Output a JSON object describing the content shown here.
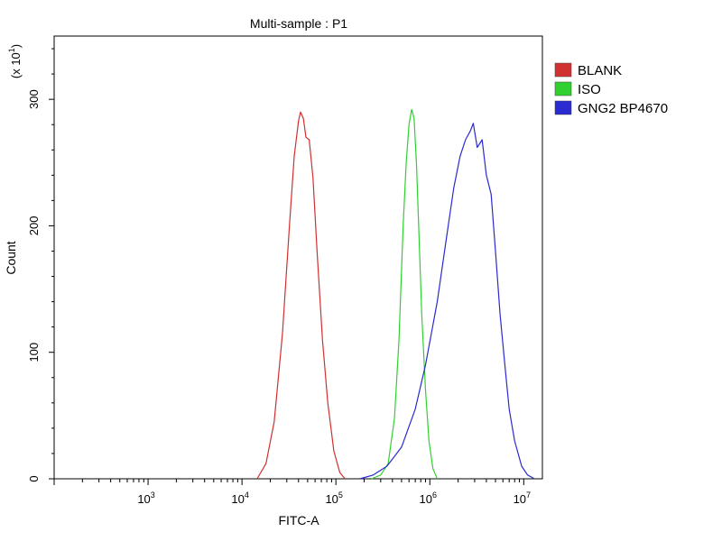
{
  "chart_data": {
    "type": "line",
    "title": "Multi-sample : P1",
    "xlabel": "FITC-A",
    "ylabel": "Count",
    "y_multiplier_label": "(x 10",
    "y_multiplier_exp": "1",
    "x_scale": "log",
    "xlim": [
      100,
      15800000
    ],
    "ylim": [
      0,
      350
    ],
    "x_ticks": [
      {
        "base": "10",
        "exp": "3",
        "value": 1000
      },
      {
        "base": "10",
        "exp": "4",
        "value": 10000
      },
      {
        "base": "10",
        "exp": "5",
        "value": 100000
      },
      {
        "base": "10",
        "exp": "6",
        "value": 1000000
      },
      {
        "base": "10",
        "exp": "7",
        "value": 10000000
      }
    ],
    "y_ticks": [
      {
        "label": "0",
        "value": 0
      },
      {
        "label": "100",
        "value": 100
      },
      {
        "label": "200",
        "value": 200
      },
      {
        "label": "300",
        "value": 300
      }
    ],
    "grid": false,
    "legend_position": "top-right",
    "series": [
      {
        "name": "BLANK",
        "color": "#d03030",
        "points": [
          [
            14500,
            0
          ],
          [
            18000,
            12
          ],
          [
            22000,
            45
          ],
          [
            27000,
            115
          ],
          [
            32000,
            200
          ],
          [
            36000,
            255
          ],
          [
            40000,
            283
          ],
          [
            42000,
            290
          ],
          [
            45000,
            285
          ],
          [
            48000,
            270
          ],
          [
            52000,
            268
          ],
          [
            57000,
            238
          ],
          [
            63000,
            180
          ],
          [
            72000,
            110
          ],
          [
            82000,
            60
          ],
          [
            95000,
            22
          ],
          [
            110000,
            5
          ],
          [
            125000,
            0
          ]
        ]
      },
      {
        "name": "ISO",
        "color": "#30d030",
        "points": [
          [
            240000,
            0
          ],
          [
            300000,
            3
          ],
          [
            360000,
            12
          ],
          [
            420000,
            48
          ],
          [
            470000,
            110
          ],
          [
            520000,
            200
          ],
          [
            560000,
            250
          ],
          [
            600000,
            280
          ],
          [
            640000,
            292
          ],
          [
            680000,
            285
          ],
          [
            720000,
            250
          ],
          [
            760000,
            200
          ],
          [
            820000,
            130
          ],
          [
            900000,
            70
          ],
          [
            980000,
            30
          ],
          [
            1080000,
            8
          ],
          [
            1200000,
            0
          ]
        ]
      },
      {
        "name": "GNG2 BP4670",
        "color": "#2a2ad0",
        "points": [
          [
            180000,
            0
          ],
          [
            250000,
            3
          ],
          [
            350000,
            10
          ],
          [
            500000,
            25
          ],
          [
            700000,
            55
          ],
          [
            900000,
            90
          ],
          [
            1200000,
            140
          ],
          [
            1500000,
            190
          ],
          [
            1800000,
            230
          ],
          [
            2100000,
            255
          ],
          [
            2400000,
            268
          ],
          [
            2700000,
            275
          ],
          [
            2900000,
            281
          ],
          [
            3200000,
            262
          ],
          [
            3600000,
            268
          ],
          [
            4000000,
            240
          ],
          [
            4500000,
            225
          ],
          [
            5000000,
            180
          ],
          [
            5600000,
            130
          ],
          [
            6300000,
            90
          ],
          [
            7000000,
            55
          ],
          [
            8000000,
            30
          ],
          [
            9500000,
            10
          ],
          [
            11000000,
            3
          ],
          [
            13000000,
            0
          ]
        ]
      }
    ]
  }
}
